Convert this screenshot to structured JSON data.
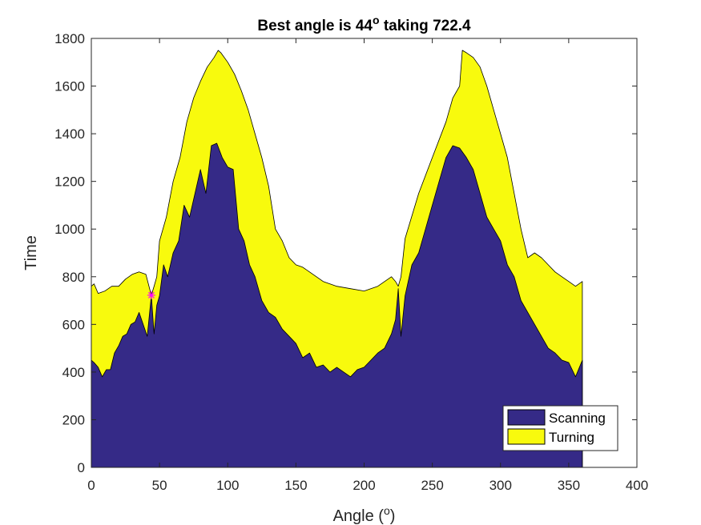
{
  "chart_data": {
    "type": "area",
    "title": {
      "prefix": "Best angle is 44",
      "sup": "o",
      "suffix": " taking 722.4"
    },
    "xlabel": {
      "prefix": "Angle (",
      "sup": "o",
      "suffix": ")"
    },
    "ylabel": "Time",
    "xlim": [
      0,
      400
    ],
    "ylim": [
      0,
      1800
    ],
    "xticks": [
      0,
      50,
      100,
      150,
      200,
      250,
      300,
      350,
      400
    ],
    "yticks": [
      0,
      200,
      400,
      600,
      800,
      1000,
      1200,
      1400,
      1600,
      1800
    ],
    "grid": false,
    "legend_position": "bottom-right",
    "series": [
      {
        "name": "Scanning",
        "color": "#352a87",
        "x": [
          0,
          2,
          5,
          8,
          11,
          14,
          17,
          20,
          23,
          26,
          29,
          32,
          35,
          38,
          41,
          44,
          46,
          48,
          50,
          53,
          56,
          60,
          64,
          68,
          72,
          76,
          80,
          84,
          88,
          92,
          96,
          100,
          104,
          108,
          112,
          116,
          120,
          125,
          130,
          135,
          140,
          145,
          150,
          155,
          160,
          165,
          170,
          175,
          180,
          185,
          190,
          195,
          200,
          205,
          210,
          215,
          220,
          223,
          225,
          227,
          230,
          235,
          240,
          245,
          250,
          255,
          260,
          265,
          270,
          275,
          280,
          285,
          290,
          295,
          300,
          305,
          310,
          315,
          320,
          325,
          330,
          335,
          340,
          345,
          350,
          355,
          360
        ],
        "values": [
          450,
          440,
          420,
          380,
          410,
          410,
          480,
          510,
          550,
          560,
          600,
          610,
          650,
          600,
          550,
          722,
          560,
          680,
          720,
          850,
          800,
          900,
          950,
          1100,
          1050,
          1150,
          1250,
          1150,
          1350,
          1360,
          1300,
          1260,
          1250,
          1000,
          950,
          850,
          800,
          700,
          650,
          630,
          580,
          550,
          520,
          460,
          480,
          420,
          430,
          400,
          420,
          400,
          380,
          410,
          420,
          450,
          480,
          500,
          560,
          620,
          750,
          550,
          720,
          850,
          900,
          1000,
          1100,
          1200,
          1300,
          1350,
          1340,
          1300,
          1250,
          1150,
          1050,
          1000,
          950,
          850,
          800,
          700,
          650,
          600,
          550,
          500,
          480,
          450,
          440,
          380,
          450
        ]
      },
      {
        "name": "Turning",
        "color": "#f8fa0d",
        "x": [
          0,
          2,
          5,
          10,
          15,
          20,
          25,
          30,
          35,
          40,
          44,
          46,
          48,
          50,
          55,
          60,
          65,
          70,
          75,
          80,
          85,
          90,
          93,
          95,
          100,
          105,
          110,
          115,
          120,
          125,
          130,
          135,
          140,
          145,
          150,
          155,
          160,
          170,
          180,
          190,
          200,
          210,
          220,
          223,
          225,
          227,
          230,
          240,
          250,
          260,
          265,
          270,
          272,
          275,
          280,
          285,
          290,
          295,
          300,
          305,
          310,
          315,
          320,
          325,
          330,
          335,
          340,
          345,
          350,
          355,
          360
        ],
        "values": [
          760,
          770,
          730,
          740,
          760,
          760,
          790,
          810,
          820,
          810,
          722,
          760,
          800,
          950,
          1050,
          1200,
          1300,
          1450,
          1550,
          1620,
          1680,
          1720,
          1750,
          1740,
          1700,
          1650,
          1580,
          1500,
          1400,
          1300,
          1180,
          1000,
          950,
          880,
          850,
          840,
          820,
          780,
          760,
          750,
          740,
          760,
          800,
          780,
          760,
          800,
          960,
          1150,
          1300,
          1450,
          1550,
          1600,
          1750,
          1740,
          1720,
          1680,
          1600,
          1500,
          1400,
          1300,
          1150,
          1000,
          880,
          900,
          880,
          850,
          820,
          800,
          780,
          760,
          780
        ]
      }
    ],
    "annotations": [
      {
        "type": "marker",
        "symbol": "*",
        "x": 44,
        "y": 722.4,
        "color": "#ff00ff"
      }
    ]
  }
}
